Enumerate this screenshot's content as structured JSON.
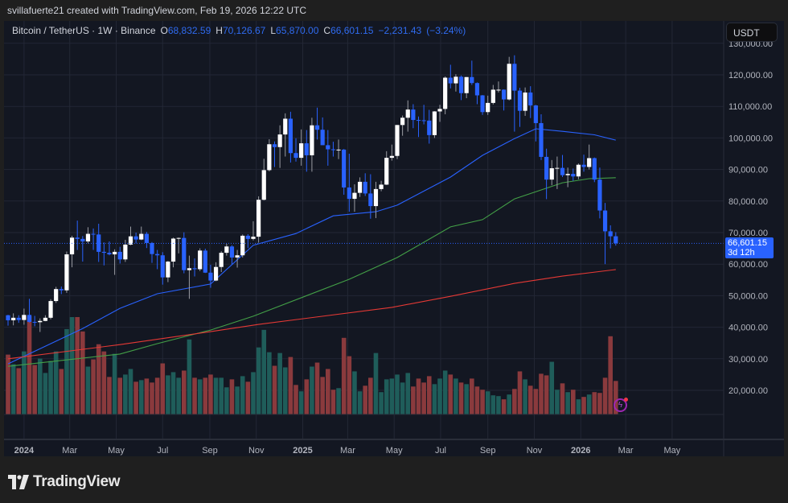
{
  "attribution": "svillafuerte21 created with TradingView.com, Feb 19, 2026 12:22 UTC",
  "legend": {
    "symbol": "Bitcoin / TetherUS · 1W · Binance",
    "o_label": "O",
    "o_value": "68,832.59",
    "h_label": "H",
    "h_value": "70,126.67",
    "l_label": "L",
    "l_value": "65,870.00",
    "c_label": "C",
    "c_value": "66,601.15",
    "change": "−2,231.43",
    "change_pct": "(−3.24%)"
  },
  "currency_button": "USDT",
  "price_label": {
    "value": "66,601.15",
    "countdown": "3d 12h"
  },
  "logo_text": "TradingView",
  "colors": {
    "up": "#ffffff",
    "down": "#2962ff",
    "vol_up": "#1f5d5a",
    "vol_down": "#8a3a3d",
    "accent": "#2962ff",
    "background": "#131722"
  },
  "chart_data": {
    "type": "candlestick",
    "title": "Bitcoin / TetherUS · 1W · Binance",
    "interval": "1W",
    "start": "2023-12-11",
    "fields": [
      "open",
      "high",
      "low",
      "close",
      "volume_relative"
    ],
    "candles": [
      [
        43.8,
        43.9,
        40.5,
        42.2,
        75
      ],
      [
        42.2,
        44.4,
        40.6,
        43.0,
        63
      ],
      [
        43.0,
        43.8,
        41.4,
        42.3,
        58
      ],
      [
        42.3,
        45.9,
        40.8,
        43.9,
        79
      ],
      [
        43.9,
        49.0,
        41.5,
        41.7,
        123
      ],
      [
        41.7,
        43.6,
        40.3,
        41.6,
        62
      ],
      [
        41.6,
        42.8,
        38.5,
        42.0,
        70
      ],
      [
        42.0,
        43.8,
        41.9,
        43.0,
        52
      ],
      [
        43.0,
        48.9,
        42.5,
        48.3,
        67
      ],
      [
        48.3,
        52.8,
        47.7,
        52.1,
        79
      ],
      [
        52.1,
        52.9,
        50.5,
        51.7,
        57
      ],
      [
        51.7,
        64.0,
        50.9,
        63.1,
        107
      ],
      [
        63.1,
        69.0,
        59.0,
        68.4,
        122
      ],
      [
        68.4,
        73.8,
        64.5,
        68.0,
        122
      ],
      [
        68.0,
        68.9,
        60.8,
        67.2,
        104
      ],
      [
        67.2,
        71.7,
        66.6,
        69.6,
        60
      ],
      [
        69.6,
        71.3,
        64.5,
        69.4,
        69
      ],
      [
        69.4,
        72.8,
        60.7,
        63.9,
        88
      ],
      [
        63.9,
        66.9,
        59.6,
        63.6,
        79
      ],
      [
        63.6,
        67.2,
        62.8,
        63.1,
        47
      ],
      [
        63.1,
        64.7,
        56.6,
        63.9,
        76
      ],
      [
        63.9,
        65.5,
        60.2,
        61.5,
        46
      ],
      [
        61.5,
        67.7,
        60.7,
        66.2,
        50
      ],
      [
        66.2,
        71.9,
        66.0,
        68.8,
        57
      ],
      [
        68.8,
        70.0,
        66.6,
        67.8,
        41
      ],
      [
        67.8,
        71.9,
        67.6,
        69.6,
        43
      ],
      [
        69.6,
        70.2,
        65.1,
        66.7,
        45
      ],
      [
        66.7,
        67.0,
        60.4,
        63.2,
        40
      ],
      [
        63.2,
        64.5,
        58.4,
        62.8,
        46
      ],
      [
        62.8,
        63.8,
        53.5,
        55.8,
        64
      ],
      [
        55.8,
        61.0,
        54.3,
        60.8,
        49
      ],
      [
        60.8,
        68.4,
        59.0,
        68.1,
        53
      ],
      [
        68.1,
        68.4,
        63.4,
        68.3,
        46
      ],
      [
        68.3,
        70.1,
        57.1,
        58.1,
        55
      ],
      [
        58.1,
        62.7,
        49.0,
        58.7,
        94
      ],
      [
        58.7,
        61.8,
        56.1,
        58.4,
        46
      ],
      [
        58.4,
        65.0,
        57.8,
        64.3,
        44
      ],
      [
        64.3,
        64.9,
        57.2,
        57.3,
        46
      ],
      [
        57.3,
        59.8,
        52.5,
        54.8,
        50
      ],
      [
        54.8,
        60.6,
        54.6,
        59.1,
        46
      ],
      [
        59.1,
        64.1,
        57.5,
        63.6,
        46
      ],
      [
        63.6,
        66.5,
        62.7,
        65.6,
        34
      ],
      [
        65.6,
        66.0,
        59.8,
        62.1,
        44
      ],
      [
        62.1,
        64.5,
        58.9,
        62.8,
        35
      ],
      [
        62.8,
        69.4,
        62.1,
        69.0,
        48
      ],
      [
        69.0,
        69.5,
        65.1,
        68.0,
        41
      ],
      [
        68.0,
        73.6,
        67.5,
        68.7,
        53
      ],
      [
        68.7,
        81.5,
        66.8,
        80.4,
        84
      ],
      [
        80.4,
        93.4,
        80.2,
        89.8,
        106
      ],
      [
        89.8,
        99.6,
        89.4,
        98.0,
        78
      ],
      [
        98.0,
        98.9,
        90.8,
        97.1,
        61
      ],
      [
        97.1,
        104.0,
        90.5,
        101.1,
        77
      ],
      [
        101.1,
        107.8,
        94.1,
        106.1,
        59
      ],
      [
        106.1,
        108.3,
        92.2,
        95.2,
        72
      ],
      [
        95.2,
        99.9,
        92.5,
        93.7,
        37
      ],
      [
        93.7,
        102.7,
        91.2,
        98.3,
        29
      ],
      [
        98.3,
        102.5,
        89.3,
        94.5,
        44
      ],
      [
        94.5,
        106.4,
        89.3,
        104.0,
        60
      ],
      [
        104.0,
        109.6,
        99.5,
        102.6,
        65
      ],
      [
        102.6,
        106.5,
        97.8,
        97.7,
        47
      ],
      [
        97.7,
        102.5,
        91.2,
        96.4,
        57
      ],
      [
        96.4,
        98.8,
        94.1,
        96.2,
        31
      ],
      [
        96.2,
        99.5,
        93.3,
        96.3,
        33
      ],
      [
        96.3,
        96.5,
        82.0,
        84.3,
        96
      ],
      [
        84.3,
        95.0,
        76.6,
        80.7,
        73
      ],
      [
        80.7,
        85.3,
        76.6,
        82.6,
        54
      ],
      [
        82.6,
        87.5,
        81.3,
        86.1,
        29
      ],
      [
        86.1,
        88.8,
        81.6,
        82.4,
        36
      ],
      [
        82.4,
        88.5,
        74.4,
        78.4,
        46
      ],
      [
        78.4,
        86.1,
        74.6,
        83.8,
        77
      ],
      [
        83.8,
        86.4,
        83.1,
        85.2,
        28
      ],
      [
        85.2,
        95.8,
        85.1,
        93.7,
        44
      ],
      [
        93.7,
        97.9,
        92.8,
        94.3,
        45
      ],
      [
        94.3,
        104.1,
        93.3,
        104.1,
        50
      ],
      [
        104.1,
        107.1,
        100.7,
        106.4,
        40
      ],
      [
        106.4,
        111.9,
        102.0,
        109.0,
        52
      ],
      [
        109.0,
        110.7,
        103.1,
        105.7,
        35
      ],
      [
        105.7,
        106.8,
        100.3,
        105.6,
        45
      ],
      [
        105.6,
        110.5,
        104.3,
        105.5,
        40
      ],
      [
        105.5,
        108.9,
        98.2,
        100.9,
        48
      ],
      [
        100.9,
        108.5,
        100.0,
        108.4,
        38
      ],
      [
        108.4,
        110.5,
        105.1,
        109.2,
        45
      ],
      [
        109.2,
        119.5,
        107.5,
        119.1,
        55
      ],
      [
        119.1,
        123.2,
        115.7,
        117.3,
        50
      ],
      [
        117.3,
        120.2,
        114.7,
        119.4,
        45
      ],
      [
        119.4,
        119.8,
        112.0,
        114.2,
        40
      ],
      [
        114.2,
        119.3,
        112.6,
        119.3,
        38
      ],
      [
        119.3,
        124.5,
        116.8,
        117.4,
        45
      ],
      [
        117.4,
        117.6,
        110.7,
        113.5,
        35
      ],
      [
        113.5,
        113.6,
        107.3,
        108.2,
        31
      ],
      [
        108.2,
        113.4,
        107.3,
        111.1,
        29
      ],
      [
        111.1,
        116.8,
        110.6,
        115.3,
        24
      ],
      [
        115.3,
        117.9,
        114.4,
        115.3,
        23
      ],
      [
        115.3,
        115.4,
        108.7,
        112.2,
        19
      ],
      [
        112.2,
        125.7,
        111.9,
        123.5,
        25
      ],
      [
        123.5,
        126.2,
        102.0,
        115.0,
        32
      ],
      [
        115.0,
        115.9,
        103.5,
        108.6,
        54
      ],
      [
        108.6,
        116.0,
        107.0,
        114.4,
        44
      ],
      [
        114.4,
        116.4,
        106.3,
        110.3,
        36
      ],
      [
        110.3,
        110.5,
        98.9,
        104.7,
        32
      ],
      [
        104.7,
        107.5,
        93.0,
        94.0,
        51
      ],
      [
        94.0,
        96.6,
        80.6,
        86.8,
        49
      ],
      [
        86.8,
        93.0,
        85.0,
        90.4,
        66
      ],
      [
        90.4,
        94.1,
        83.8,
        90.5,
        31
      ],
      [
        90.5,
        94.6,
        87.6,
        88.2,
        39
      ],
      [
        88.2,
        90.6,
        84.4,
        88.6,
        28
      ],
      [
        88.6,
        90.3,
        86.4,
        87.8,
        31
      ],
      [
        87.8,
        91.9,
        86.9,
        91.5,
        19
      ],
      [
        91.5,
        94.7,
        89.3,
        90.8,
        22
      ],
      [
        90.8,
        97.9,
        90.0,
        93.6,
        25
      ],
      [
        93.6,
        93.8,
        86.0,
        86.8,
        28
      ],
      [
        86.8,
        90.6,
        74.5,
        77.0,
        27
      ],
      [
        77.0,
        79.4,
        60.0,
        70.4,
        46
      ],
      [
        70.4,
        72.3,
        65.0,
        68.83,
        98
      ],
      [
        68.83259,
        70.12667,
        65.87,
        66.60115,
        42
      ]
    ],
    "price_unit_multiplier": 1000,
    "moving_averages": [
      {
        "color": "#2962ff",
        "points": [
          [
            "2023-12-11",
            28400
          ],
          [
            "2024-03-18",
            39600
          ],
          [
            "2024-05-06",
            46000
          ],
          [
            "2024-06-24",
            50600
          ],
          [
            "2024-09-02",
            53700
          ],
          [
            "2024-10-28",
            66000
          ],
          [
            "2024-12-23",
            69700
          ],
          [
            "2025-02-10",
            75300
          ],
          [
            "2025-04-07",
            76600
          ],
          [
            "2025-05-05",
            78700
          ],
          [
            "2025-07-14",
            87600
          ],
          [
            "2025-08-25",
            94500
          ],
          [
            "2025-10-06",
            99800
          ],
          [
            "2025-11-03",
            102900
          ],
          [
            "2025-12-08",
            102100
          ],
          [
            "2026-01-19",
            101000
          ],
          [
            "2026-02-16",
            99300
          ]
        ]
      },
      {
        "color": "#43a047",
        "points": [
          [
            "2023-12-11",
            27600
          ],
          [
            "2024-05-06",
            31500
          ],
          [
            "2024-06-24",
            34800
          ],
          [
            "2024-09-02",
            39100
          ],
          [
            "2024-10-28",
            43500
          ],
          [
            "2025-03-03",
            55200
          ],
          [
            "2025-05-05",
            62100
          ],
          [
            "2025-07-14",
            71800
          ],
          [
            "2025-08-25",
            74100
          ],
          [
            "2025-10-06",
            80700
          ],
          [
            "2025-12-08",
            85800
          ],
          [
            "2026-01-12",
            87100
          ],
          [
            "2026-02-16",
            87400
          ]
        ]
      },
      {
        "color": "#e53935",
        "points": [
          [
            "2023-12-11",
            30000
          ],
          [
            "2024-05-06",
            34500
          ],
          [
            "2024-09-02",
            38600
          ],
          [
            "2024-11-04",
            40900
          ],
          [
            "2025-04-28",
            46300
          ],
          [
            "2025-07-14",
            49800
          ],
          [
            "2025-10-06",
            53900
          ],
          [
            "2025-12-08",
            56200
          ],
          [
            "2026-02-16",
            58300
          ]
        ]
      }
    ],
    "current_price": 66601.15,
    "y_ticks": [
      "20,000.00",
      "30,000.00",
      "40,000.00",
      "50,000.00",
      "60,000.00",
      "70,000.00",
      "80,000.00",
      "90,000.00",
      "100,000.00",
      "110,000.00",
      "120,000.00",
      "130,000.00"
    ],
    "y_tick_values": [
      20000,
      30000,
      40000,
      50000,
      60000,
      70000,
      80000,
      90000,
      100000,
      110000,
      120000,
      130000
    ],
    "x_ticks": [
      {
        "label": "2024",
        "date": "2024-01-01",
        "major": true
      },
      {
        "label": "Mar",
        "date": "2024-03-01"
      },
      {
        "label": "May",
        "date": "2024-05-01"
      },
      {
        "label": "Jul",
        "date": "2024-07-01"
      },
      {
        "label": "Sep",
        "date": "2024-09-01"
      },
      {
        "label": "Nov",
        "date": "2024-11-01"
      },
      {
        "label": "2025",
        "date": "2025-01-01",
        "major": true
      },
      {
        "label": "Mar",
        "date": "2025-03-01"
      },
      {
        "label": "May",
        "date": "2025-05-01"
      },
      {
        "label": "Jul",
        "date": "2025-07-01"
      },
      {
        "label": "Sep",
        "date": "2025-09-01"
      },
      {
        "label": "Nov",
        "date": "2025-11-01"
      },
      {
        "label": "2026",
        "date": "2026-01-01",
        "major": true
      },
      {
        "label": "Mar",
        "date": "2026-03-01"
      },
      {
        "label": "May",
        "date": "2026-05-01"
      }
    ],
    "grid": true
  }
}
